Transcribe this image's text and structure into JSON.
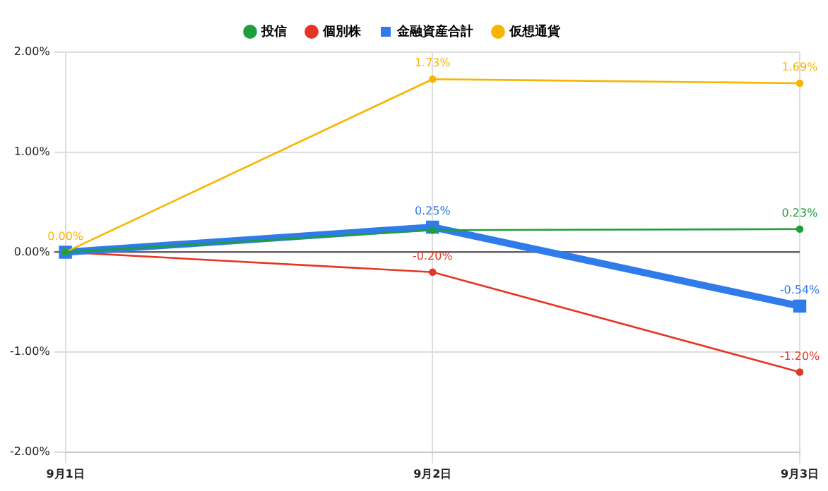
{
  "chart_data": {
    "type": "line",
    "categories": [
      "9月1日",
      "9月2日",
      "9月3日"
    ],
    "series": [
      {
        "name": "投信",
        "color": "#1e9e3c",
        "values": [
          0,
          0.22,
          0.23
        ],
        "value_labels": [
          null,
          null,
          "0.23%"
        ]
      },
      {
        "name": "個別株",
        "color": "#e53524",
        "values": [
          0,
          -0.2,
          -1.2
        ],
        "value_labels": [
          null,
          "-0.20%",
          "-1.20%"
        ]
      },
      {
        "name": "金融資産合計",
        "color": "#2f7bea",
        "values": [
          0,
          0.25,
          -0.54
        ],
        "value_labels": [
          null,
          "0.25%",
          "-0.54%"
        ],
        "marker": "square"
      },
      {
        "name": "仮想通貨",
        "color": "#f7b500",
        "values": [
          0,
          1.73,
          1.69
        ],
        "value_labels": [
          "0.00%",
          "1.73%",
          "1.69%"
        ]
      }
    ],
    "ylim": [
      -2,
      2
    ],
    "yticks": [
      {
        "value": -2,
        "label": "-2.00%"
      },
      {
        "value": -1,
        "label": "-1.00%"
      },
      {
        "value": 0,
        "label": "0.00%"
      },
      {
        "value": 1,
        "label": "1.00%"
      },
      {
        "value": 2,
        "label": "2.00%"
      }
    ],
    "grid": true,
    "legend": "top",
    "marker": "circle",
    "line_style": "solid"
  }
}
